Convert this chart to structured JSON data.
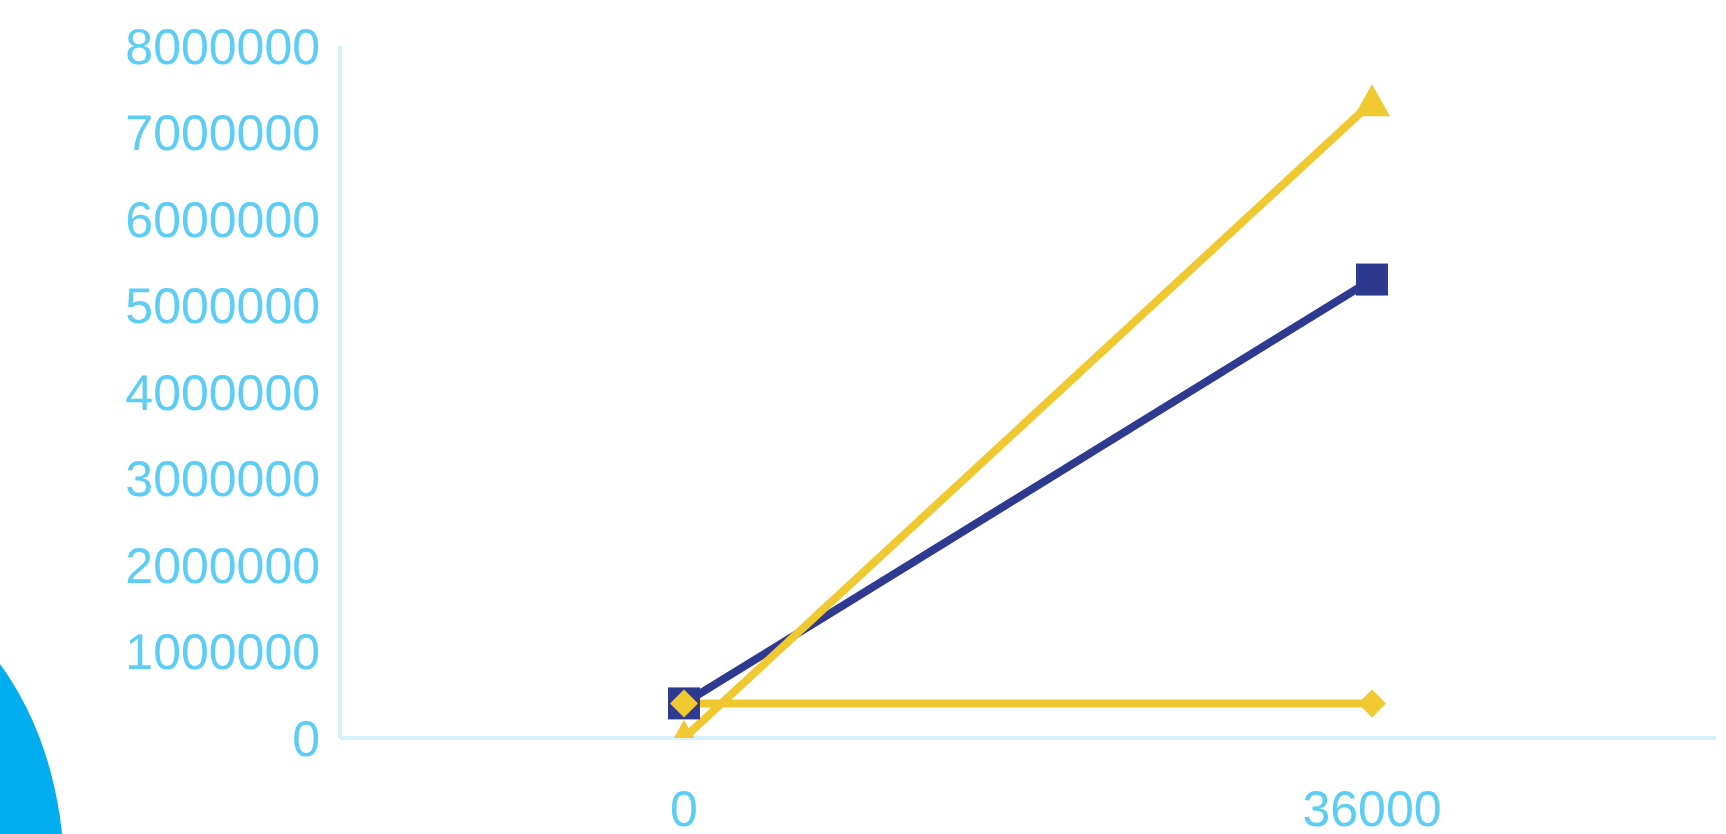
{
  "chart_data": {
    "type": "line",
    "categories": [
      "0",
      "36000"
    ],
    "series": [
      {
        "color": "#2e3a8f",
        "marker": "square",
        "values": [
          400000,
          5300000
        ]
      },
      {
        "color": "#f0c930",
        "marker": "diamond",
        "values": [
          400000,
          400000
        ]
      },
      {
        "color": "#f0c930",
        "marker": "triangle",
        "values": [
          0,
          7350000
        ]
      }
    ],
    "ylim": [
      0,
      8000000
    ],
    "yticks": [
      0,
      1000000,
      2000000,
      3000000,
      4000000,
      5000000,
      6000000,
      7000000,
      8000000
    ],
    "grid": false
  }
}
